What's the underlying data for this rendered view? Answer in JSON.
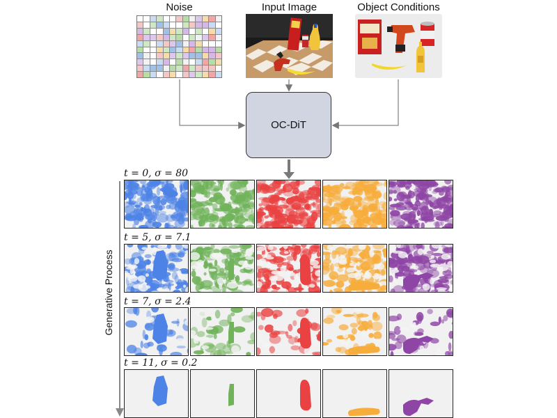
{
  "inputs": {
    "noise_label": "Noise",
    "image_label": "Input Image",
    "conditions_label": "Object Conditions"
  },
  "model": {
    "label": "OC-DiT"
  },
  "process_label": "Generative Process",
  "steps": [
    {
      "label": "t = 0, σ = 80"
    },
    {
      "label": "t = 5, σ = 7.1"
    },
    {
      "label": "t = 7, σ = 2.4"
    },
    {
      "label": "t = 11, σ = 0.2"
    }
  ],
  "object_colors": [
    "#4d83e6",
    "#70b35a",
    "#ea4242",
    "#f7ad3c",
    "#8e45a5"
  ],
  "objects": [
    "cracker-box",
    "power-drill",
    "soup-can",
    "banana",
    "mustard-bottle"
  ]
}
